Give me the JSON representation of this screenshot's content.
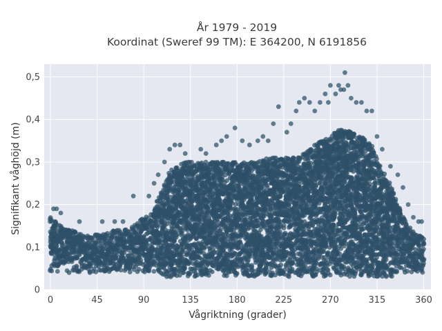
{
  "chart_data": {
    "type": "scatter",
    "title_lines": [
      "År 1979 - 2019",
      "Koordinat (Sweref 99 TM): E 364200, N 6191856"
    ],
    "xlabel": "Vågriktning (grader)",
    "ylabel": "Signifikant våghöjd (m)",
    "xlim": [
      -6,
      367
    ],
    "ylim": [
      0,
      0.53
    ],
    "x_ticks": [
      0,
      45,
      90,
      135,
      180,
      225,
      270,
      315,
      360
    ],
    "x_tick_labels": [
      "0",
      "45",
      "90",
      "135",
      "180",
      "225",
      "270",
      "315",
      "360"
    ],
    "y_ticks": [
      0,
      0.1,
      0.2,
      0.3,
      0.4,
      0.5
    ],
    "y_tick_labels": [
      "0",
      "0,1",
      "0,2",
      "0,3",
      "0,4",
      "0,5"
    ],
    "grid": true,
    "colors": {
      "background": "#e5e8f0",
      "grid": "#ffffff",
      "marker": "#2e5068"
    },
    "series": [
      {
        "direction_bins": [
          0,
          10,
          20,
          30,
          40,
          50,
          60,
          70,
          80,
          90,
          100,
          105,
          110,
          115,
          120,
          130,
          140,
          150,
          160,
          170,
          180,
          190,
          200,
          210,
          220,
          230,
          240,
          250,
          260,
          270,
          280,
          290,
          300,
          310,
          315,
          320,
          330,
          340,
          350,
          360
        ],
        "lower_envelope": [
          0.04,
          0.04,
          0.04,
          0.04,
          0.04,
          0.04,
          0.04,
          0.04,
          0.04,
          0.04,
          0.04,
          0.04,
          0.03,
          0.03,
          0.03,
          0.03,
          0.03,
          0.03,
          0.03,
          0.03,
          0.03,
          0.03,
          0.03,
          0.03,
          0.03,
          0.03,
          0.03,
          0.03,
          0.03,
          0.03,
          0.03,
          0.03,
          0.03,
          0.03,
          0.03,
          0.03,
          0.03,
          0.04,
          0.04,
          0.04
        ],
        "upper_envelope": [
          0.17,
          0.15,
          0.14,
          0.13,
          0.13,
          0.13,
          0.14,
          0.14,
          0.15,
          0.17,
          0.19,
          0.22,
          0.25,
          0.28,
          0.29,
          0.3,
          0.3,
          0.3,
          0.3,
          0.3,
          0.3,
          0.3,
          0.3,
          0.31,
          0.31,
          0.31,
          0.31,
          0.33,
          0.35,
          0.36,
          0.38,
          0.37,
          0.36,
          0.34,
          0.31,
          0.28,
          0.24,
          0.17,
          0.14,
          0.12
        ],
        "outliers": [
          [
            3,
            0.19
          ],
          [
            6,
            0.19
          ],
          [
            10,
            0.18
          ],
          [
            28,
            0.16
          ],
          [
            50,
            0.16
          ],
          [
            62,
            0.16
          ],
          [
            70,
            0.16
          ],
          [
            80,
            0.22
          ],
          [
            95,
            0.22
          ],
          [
            100,
            0.25
          ],
          [
            104,
            0.27
          ],
          [
            110,
            0.3
          ],
          [
            115,
            0.33
          ],
          [
            120,
            0.34
          ],
          [
            125,
            0.34
          ],
          [
            130,
            0.32
          ],
          [
            145,
            0.33
          ],
          [
            150,
            0.32
          ],
          [
            160,
            0.34
          ],
          [
            165,
            0.35
          ],
          [
            170,
            0.36
          ],
          [
            178,
            0.38
          ],
          [
            185,
            0.35
          ],
          [
            192,
            0.34
          ],
          [
            200,
            0.35
          ],
          [
            205,
            0.36
          ],
          [
            210,
            0.35
          ],
          [
            215,
            0.39
          ],
          [
            220,
            0.43
          ],
          [
            228,
            0.37
          ],
          [
            232,
            0.39
          ],
          [
            237,
            0.42
          ],
          [
            240,
            0.44
          ],
          [
            245,
            0.45
          ],
          [
            250,
            0.44
          ],
          [
            255,
            0.42
          ],
          [
            260,
            0.44
          ],
          [
            265,
            0.46
          ],
          [
            268,
            0.44
          ],
          [
            270,
            0.48
          ],
          [
            275,
            0.46
          ],
          [
            278,
            0.48
          ],
          [
            280,
            0.47
          ],
          [
            283,
            0.47
          ],
          [
            284,
            0.51
          ],
          [
            287,
            0.48
          ],
          [
            290,
            0.45
          ],
          [
            295,
            0.44
          ],
          [
            300,
            0.44
          ],
          [
            305,
            0.42
          ],
          [
            310,
            0.42
          ],
          [
            315,
            0.36
          ],
          [
            320,
            0.33
          ],
          [
            328,
            0.29
          ],
          [
            335,
            0.27
          ],
          [
            340,
            0.24
          ],
          [
            345,
            0.2
          ],
          [
            350,
            0.17
          ],
          [
            355,
            0.16
          ],
          [
            358,
            0.16
          ]
        ]
      }
    ]
  }
}
